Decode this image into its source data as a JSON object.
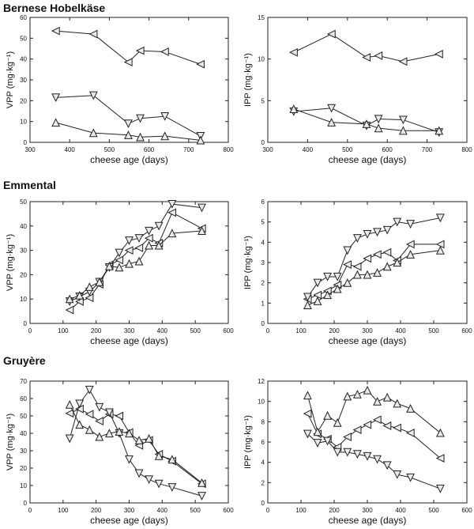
{
  "sections": [
    {
      "title": "Bernese Hobelkäse"
    },
    {
      "title": "Emmental"
    },
    {
      "title": "Gruyère"
    }
  ],
  "markers": {
    "left": "left-triangle",
    "down": "down-triangle",
    "up": "up-triangle"
  },
  "chart_data": [
    {
      "type": "line",
      "title": "",
      "xlabel": "cheese age (days)",
      "ylabel": "VPP (mg·kg⁻¹)",
      "xlim": [
        300,
        800
      ],
      "ylim": [
        0,
        60
      ],
      "xticks": [
        300,
        400,
        500,
        600,
        700,
        800
      ],
      "yticks": [
        0,
        10,
        20,
        30,
        40,
        50,
        60
      ],
      "series": [
        {
          "marker": "left",
          "x": [
            365,
            460,
            548,
            578,
            640,
            730
          ],
          "y": [
            53.5,
            52,
            38.5,
            44,
            43.5,
            37.5
          ]
        },
        {
          "marker": "down",
          "x": [
            365,
            460,
            548,
            578,
            640,
            730
          ],
          "y": [
            21.5,
            22.5,
            9,
            11.5,
            12.5,
            3
          ]
        },
        {
          "marker": "up",
          "x": [
            365,
            460,
            548,
            578,
            640,
            730
          ],
          "y": [
            9.5,
            4.5,
            3.5,
            2.5,
            3,
            1
          ]
        }
      ]
    },
    {
      "type": "line",
      "title": "",
      "xlabel": "cheese age (days)",
      "ylabel": "IPP (mg·kg⁻¹)",
      "xlim": [
        300,
        800
      ],
      "ylim": [
        0,
        15
      ],
      "xticks": [
        300,
        400,
        500,
        600,
        700,
        800
      ],
      "yticks": [
        0,
        5,
        10,
        15
      ],
      "series": [
        {
          "marker": "left",
          "x": [
            365,
            460,
            548,
            578,
            640,
            730
          ],
          "y": [
            10.8,
            13,
            10.2,
            10.4,
            9.7,
            10.6
          ]
        },
        {
          "marker": "down",
          "x": [
            365,
            460,
            548,
            578,
            640,
            730
          ],
          "y": [
            3.7,
            4.1,
            2,
            2.8,
            2.7,
            1.2
          ]
        },
        {
          "marker": "up",
          "x": [
            365,
            460,
            548,
            578,
            640,
            730
          ],
          "y": [
            4,
            2.4,
            2.2,
            1.7,
            1.4,
            1.4
          ]
        }
      ]
    },
    {
      "type": "line",
      "title": "",
      "xlabel": "cheese age (days)",
      "ylabel": "VPP (mg·kg⁻¹)",
      "xlim": [
        0,
        600
      ],
      "ylim": [
        0,
        50
      ],
      "xticks": [
        0,
        100,
        200,
        300,
        400,
        500,
        600
      ],
      "yticks": [
        0,
        10,
        20,
        30,
        40,
        50
      ],
      "series": [
        {
          "marker": "left",
          "x": [
            120,
            150,
            180,
            210,
            240,
            270,
            300,
            330,
            360,
            390,
            430,
            520
          ],
          "y": [
            5.5,
            9,
            10.5,
            16,
            24,
            26,
            30,
            31,
            35,
            33,
            45.5,
            39
          ]
        },
        {
          "marker": "down",
          "x": [
            120,
            150,
            180,
            210,
            240,
            270,
            300,
            330,
            360,
            390,
            430,
            520
          ],
          "y": [
            9,
            11,
            13,
            17,
            23,
            29,
            34,
            35,
            38,
            40,
            49,
            47.5
          ]
        },
        {
          "marker": "up",
          "x": [
            120,
            150,
            180,
            210,
            240,
            270,
            300,
            330,
            360,
            390,
            430,
            520
          ],
          "y": [
            10,
            11.5,
            15,
            17,
            23.5,
            23,
            24.5,
            25.5,
            32,
            32,
            37,
            38
          ]
        }
      ]
    },
    {
      "type": "line",
      "title": "",
      "xlabel": "cheese age (days)",
      "ylabel": "IPP (mg·kg⁻¹)",
      "xlim": [
        0,
        600
      ],
      "ylim": [
        0,
        6
      ],
      "xticks": [
        0,
        100,
        200,
        300,
        400,
        500,
        600
      ],
      "yticks": [
        0,
        1,
        2,
        3,
        4,
        5,
        6
      ],
      "series": [
        {
          "marker": "left",
          "x": [
            120,
            150,
            180,
            210,
            240,
            270,
            300,
            330,
            360,
            390,
            430,
            520
          ],
          "y": [
            1.2,
            1.4,
            1.6,
            1.9,
            2.9,
            2.8,
            3.2,
            3.4,
            3.5,
            3.1,
            3.9,
            3.9
          ]
        },
        {
          "marker": "down",
          "x": [
            120,
            150,
            180,
            210,
            240,
            270,
            300,
            330,
            360,
            390,
            430,
            520
          ],
          "y": [
            1.3,
            2,
            2.3,
            2.3,
            3.6,
            4.2,
            4.4,
            4.5,
            4.6,
            5,
            4.9,
            5.2
          ]
        },
        {
          "marker": "up",
          "x": [
            120,
            150,
            180,
            210,
            240,
            270,
            300,
            330,
            360,
            390,
            430,
            520
          ],
          "y": [
            0.9,
            1.1,
            1.4,
            1.7,
            2,
            2.4,
            2.4,
            2.5,
            2.8,
            3,
            3.4,
            3.6
          ]
        }
      ]
    },
    {
      "type": "line",
      "title": "",
      "xlabel": "cheese age (days)",
      "ylabel": "VPP (mg·kg⁻¹)",
      "xlim": [
        0,
        600
      ],
      "ylim": [
        0,
        70
      ],
      "xticks": [
        0,
        100,
        200,
        300,
        400,
        500,
        600
      ],
      "yticks": [
        0,
        10,
        20,
        30,
        40,
        50,
        60,
        70
      ],
      "series": [
        {
          "marker": "left",
          "x": [
            120,
            150,
            180,
            210,
            240,
            270,
            300,
            330,
            360,
            390,
            430,
            520
          ],
          "y": [
            51.5,
            54,
            51,
            47,
            51,
            50,
            40.5,
            33,
            36,
            28,
            24,
            11
          ]
        },
        {
          "marker": "down",
          "x": [
            120,
            150,
            180,
            210,
            240,
            270,
            300,
            330,
            360,
            390,
            430,
            520
          ],
          "y": [
            37,
            57,
            65,
            55,
            52,
            40,
            25,
            17,
            13.5,
            11,
            9,
            4
          ]
        },
        {
          "marker": "up",
          "x": [
            120,
            150,
            180,
            210,
            240,
            270,
            300,
            330,
            360,
            390,
            430,
            520
          ],
          "y": [
            56.5,
            45,
            42,
            38,
            40,
            41,
            40,
            36,
            37,
            27,
            25,
            11.5
          ]
        }
      ]
    },
    {
      "type": "line",
      "title": "",
      "xlabel": "cheese age (days)",
      "ylabel": "IPP (mg·kg⁻¹)",
      "xlim": [
        0,
        600
      ],
      "ylim": [
        0,
        12
      ],
      "xticks": [
        0,
        100,
        200,
        300,
        400,
        500,
        600
      ],
      "yticks": [
        0,
        2,
        4,
        6,
        8,
        10,
        12
      ],
      "series": [
        {
          "marker": "left",
          "x": [
            120,
            150,
            180,
            210,
            240,
            270,
            300,
            330,
            360,
            390,
            430,
            520
          ],
          "y": [
            8.8,
            6.8,
            6.3,
            5.5,
            6.5,
            7.2,
            7.7,
            8.2,
            7.6,
            7.4,
            6.9,
            4.4
          ]
        },
        {
          "marker": "down",
          "x": [
            120,
            150,
            180,
            210,
            240,
            270,
            300,
            330,
            360,
            390,
            430,
            520
          ],
          "y": [
            6.8,
            5.9,
            6.1,
            5,
            5,
            4.8,
            4.6,
            4.3,
            3.7,
            2.8,
            2.5,
            1.4
          ]
        },
        {
          "marker": "up",
          "x": [
            120,
            150,
            180,
            210,
            240,
            270,
            300,
            330,
            360,
            390,
            430,
            520
          ],
          "y": [
            10.6,
            7,
            8.6,
            7.9,
            10.5,
            10.7,
            11.1,
            10,
            10.4,
            9.8,
            9.3,
            6.9
          ]
        }
      ]
    }
  ]
}
